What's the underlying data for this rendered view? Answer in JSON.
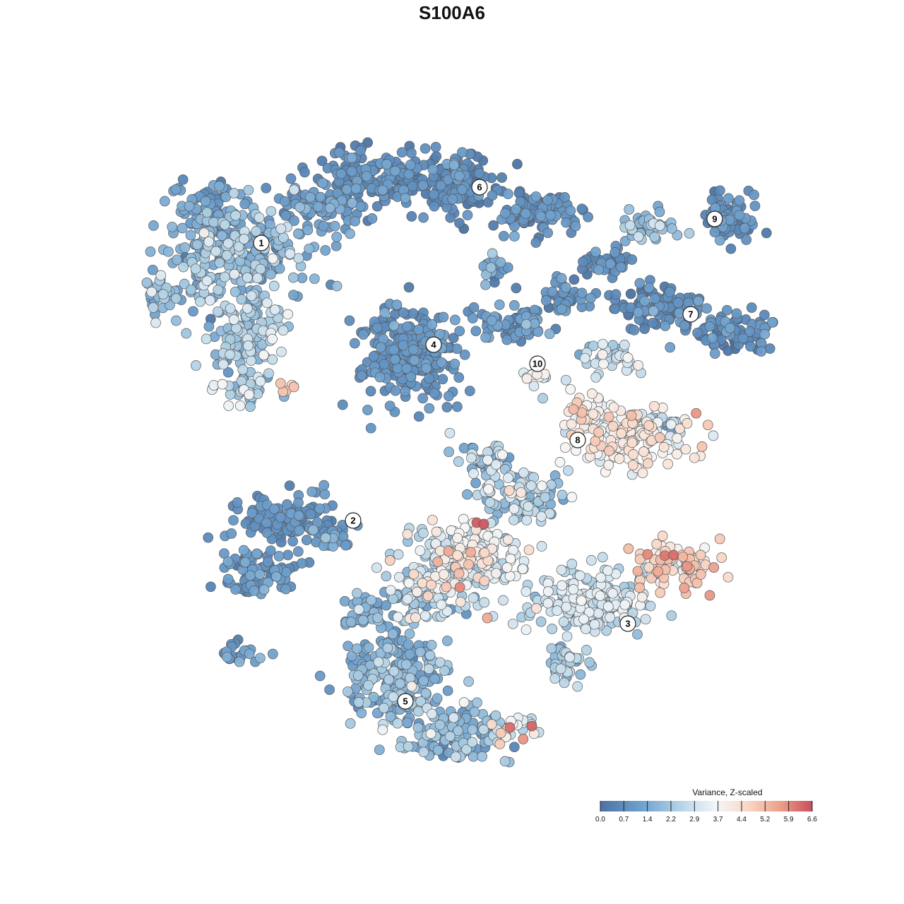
{
  "chart_data": {
    "type": "scatter",
    "title": "S100A6",
    "xlabel": "",
    "ylabel": "",
    "xlim": [
      0,
      1280
    ],
    "ylim": [
      0,
      1280
    ],
    "grid": false,
    "legend": {
      "title": "Variance, Z-scaled",
      "placement": "bottom-right",
      "ticks": [
        "0.0",
        "0.7",
        "1.4",
        "2.2",
        "2.9",
        "3.7",
        "4.4",
        "5.2",
        "5.9",
        "6.6"
      ],
      "range": [
        0,
        6.6
      ]
    },
    "colors": {
      "low": "#4a72a3",
      "mid_low": "#8fbddb",
      "mid": "#f4f6f8",
      "mid_high": "#f1b29a",
      "high": "#c84e5c",
      "outline": "#555555"
    },
    "clusters": [
      {
        "label": "1",
        "x": 370,
        "y": 344,
        "value": 1.8
      },
      {
        "label": "2",
        "x": 500,
        "y": 737,
        "value": 0.9
      },
      {
        "label": "3",
        "x": 889,
        "y": 883,
        "value": 3.0
      },
      {
        "label": "4",
        "x": 614,
        "y": 488,
        "value": 0.8
      },
      {
        "label": "5",
        "x": 574,
        "y": 993,
        "value": 1.9
      },
      {
        "label": "6",
        "x": 679,
        "y": 265,
        "value": 0.8
      },
      {
        "label": "7",
        "x": 978,
        "y": 445,
        "value": 0.7
      },
      {
        "label": "8",
        "x": 818,
        "y": 623,
        "value": 4.1
      },
      {
        "label": "9",
        "x": 1012,
        "y": 310,
        "value": 1.1
      },
      {
        "label": "10",
        "x": 761,
        "y": 515,
        "value": 3.3
      }
    ]
  }
}
